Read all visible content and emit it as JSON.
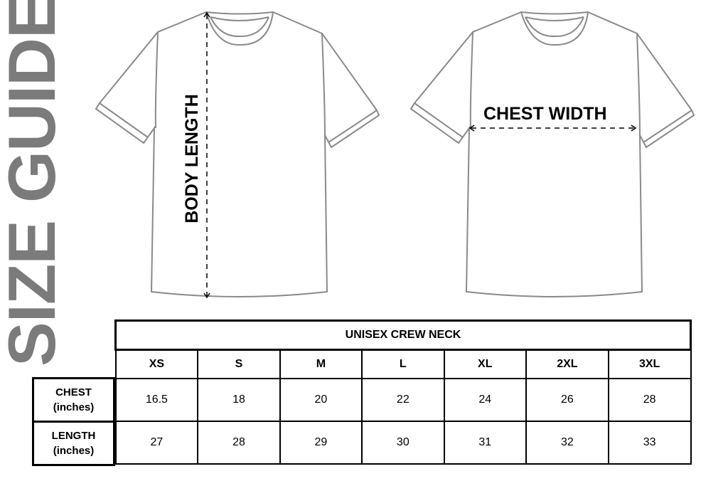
{
  "title": "SIZE GUIDE",
  "diagram": {
    "body_length_label": "BODY LENGTH",
    "chest_width_label": "CHEST WIDTH",
    "outline_color": "#8a8a8a"
  },
  "table": {
    "heading": "UNISEX CREW NECK",
    "sizes": [
      "XS",
      "S",
      "M",
      "L",
      "XL",
      "2XL",
      "3XL"
    ],
    "rows": [
      {
        "label": "CHEST",
        "unit": "(inches)",
        "values": [
          "16.5",
          "18",
          "20",
          "22",
          "24",
          "26",
          "28"
        ]
      },
      {
        "label": "LENGTH",
        "unit": "(inches)",
        "values": [
          "27",
          "28",
          "29",
          "30",
          "31",
          "32",
          "33"
        ]
      }
    ]
  },
  "colors": {
    "title": "#7b7b7b",
    "text": "#000000"
  }
}
